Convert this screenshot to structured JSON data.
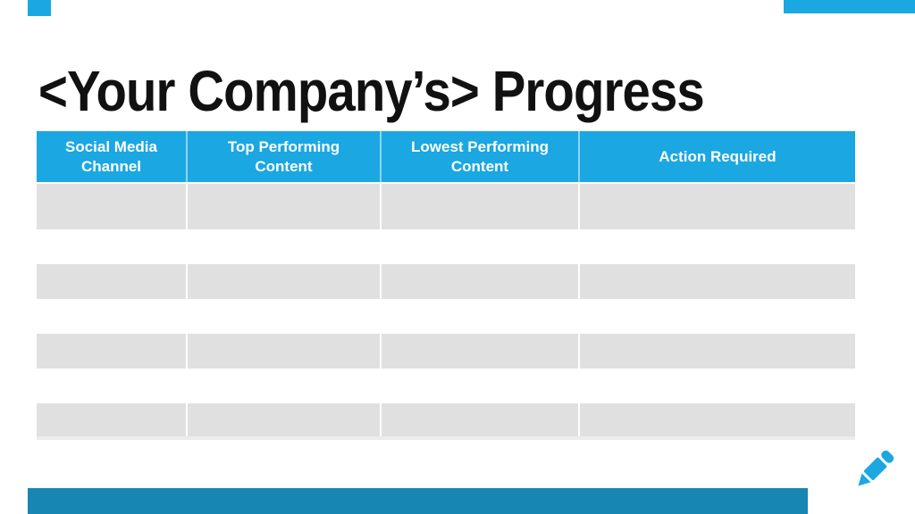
{
  "title": "<Your Company’s> Progress",
  "table": {
    "headers": [
      "Social Media Channel",
      "Top Performing Content",
      "Lowest Performing Content",
      "Action Required"
    ],
    "rows": [
      [
        "",
        "",
        "",
        ""
      ],
      [
        "",
        "",
        "",
        ""
      ],
      [
        "",
        "",
        "",
        ""
      ],
      [
        "",
        "",
        "",
        ""
      ],
      [
        "",
        "",
        "",
        ""
      ],
      [
        "",
        "",
        "",
        ""
      ],
      [
        "",
        "",
        "",
        ""
      ]
    ]
  },
  "icons": {
    "pencil": "pencil-edit-icon"
  },
  "colors": {
    "accent": "#1BA7E2",
    "header_text": "#FFFFFF",
    "row_alt": "#E0E0E0",
    "row_base": "#FFFFFF",
    "bottom_bar": "#1786B3",
    "title_text": "#111111"
  }
}
